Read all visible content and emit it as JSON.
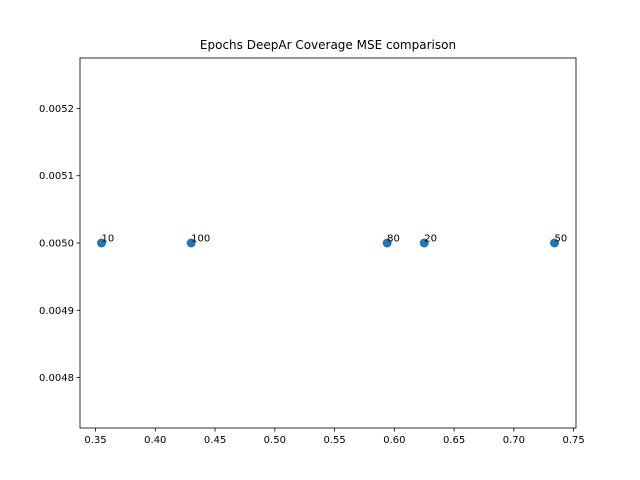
{
  "chart_data": {
    "type": "scatter",
    "title": "Epochs DeepAr Coverage MSE comparison",
    "xlabel": "",
    "ylabel": "",
    "xlim": [
      0.337,
      0.752
    ],
    "ylim": [
      0.004725,
      0.005275
    ],
    "x_ticks": [
      0.35,
      0.4,
      0.45,
      0.5,
      0.55,
      0.6,
      0.65,
      0.7,
      0.75
    ],
    "x_tick_labels": [
      "0.35",
      "0.40",
      "0.45",
      "0.50",
      "0.55",
      "0.60",
      "0.65",
      "0.70",
      "0.75"
    ],
    "y_ticks": [
      0.0048,
      0.0049,
      0.005,
      0.0051,
      0.0052
    ],
    "y_tick_labels": [
      "0.0048",
      "0.0049",
      "0.0050",
      "0.0051",
      "0.0052"
    ],
    "grid": false,
    "marker_color": "#1f77b4",
    "points": [
      {
        "label": "10",
        "x": 0.355,
        "y": 0.005
      },
      {
        "label": "100",
        "x": 0.43,
        "y": 0.005
      },
      {
        "label": "80",
        "x": 0.594,
        "y": 0.005
      },
      {
        "label": "20",
        "x": 0.625,
        "y": 0.005
      },
      {
        "label": "50",
        "x": 0.734,
        "y": 0.005
      }
    ]
  }
}
